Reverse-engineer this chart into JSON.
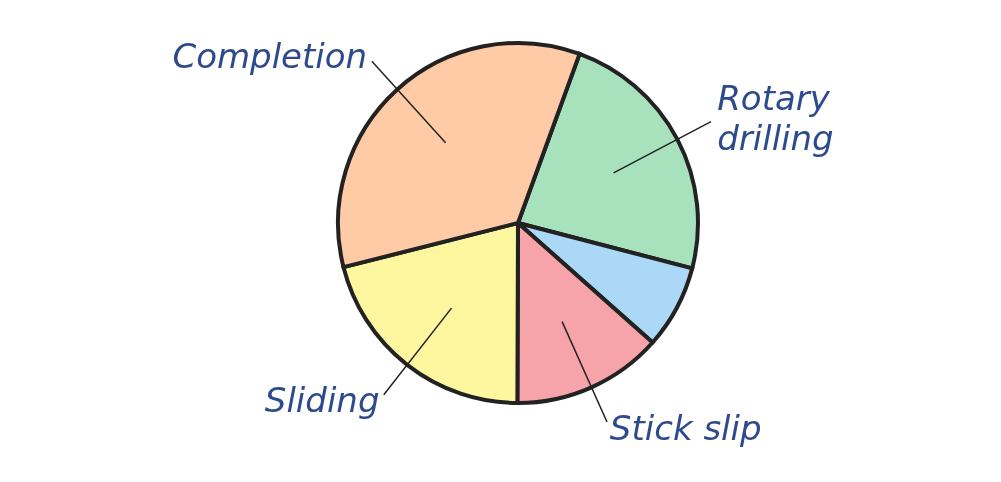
{
  "chart_data": {
    "type": "pie",
    "categories": [
      "Rotary drilling",
      null,
      "Stick slip",
      "Sliding",
      "Completion"
    ],
    "values": [
      23.5,
      7.5,
      13.5,
      21,
      34.5
    ],
    "colors": [
      "#a8e2bc",
      "#aad8f6",
      "#f7a3aa",
      "#fff6a0",
      "#ffcba6"
    ]
  }
}
